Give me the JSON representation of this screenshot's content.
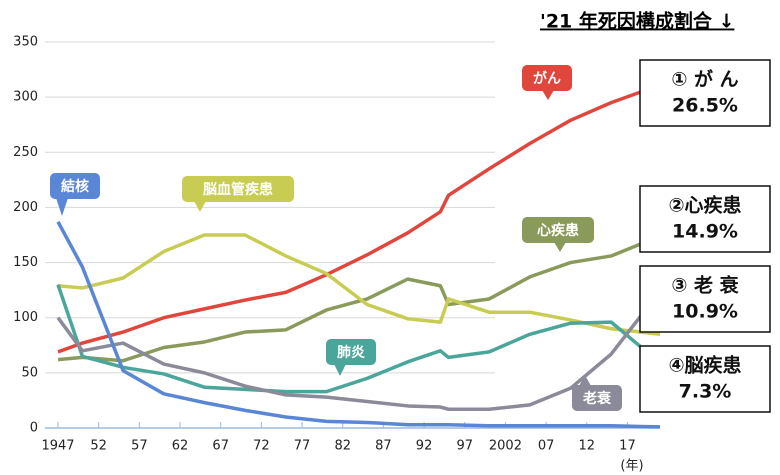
{
  "chart_data": {
    "type": "line",
    "annotation_title": "'21 年死因構成割合 ↓",
    "x_label": "(年)",
    "x": [
      1947,
      1950,
      1955,
      1960,
      1965,
      1970,
      1975,
      1980,
      1985,
      1990,
      1994,
      1995,
      2000,
      2005,
      2010,
      2015,
      2021
    ],
    "xlim": [
      1947,
      2021
    ],
    "xticks": [
      1947,
      {
        "value": 1952,
        "label": "52"
      },
      {
        "value": 1957,
        "label": "57"
      },
      {
        "value": 1962,
        "label": "62"
      },
      {
        "value": 1967,
        "label": "67"
      },
      {
        "value": 1972,
        "label": "72"
      },
      {
        "value": 1977,
        "label": "77"
      },
      {
        "value": 1982,
        "label": "82"
      },
      {
        "value": 1987,
        "label": "87"
      },
      {
        "value": 1992,
        "label": "92"
      },
      {
        "value": 1997,
        "label": "97"
      },
      2002,
      {
        "value": 2007,
        "label": "07"
      },
      {
        "value": 2012,
        "label": "12"
      },
      {
        "value": 2017,
        "label": "17"
      }
    ],
    "ylim": [
      0,
      350
    ],
    "yticks": [
      0,
      50,
      100,
      150,
      200,
      250,
      300,
      350
    ],
    "grid": true,
    "series": [
      {
        "name": "がん",
        "color": "#e0463c",
        "values": [
          69,
          77,
          87,
          100,
          108,
          116,
          123,
          139,
          157,
          177,
          196,
          211,
          235,
          258,
          279,
          295,
          311
        ]
      },
      {
        "name": "心疾患",
        "color": "#8a9a5a",
        "values": [
          62,
          64,
          61,
          73,
          78,
          87,
          89,
          107,
          117,
          135,
          129,
          112,
          117,
          137,
          150,
          156,
          174
        ]
      },
      {
        "name": "脳血管疾患",
        "color": "#c8cc52",
        "values": [
          129,
          127,
          136,
          160,
          175,
          175,
          156,
          140,
          112,
          99,
          96,
          117,
          105,
          105,
          98,
          90,
          85
        ]
      },
      {
        "name": "肺炎",
        "color": "#4aa59a",
        "values": [
          130,
          65,
          55,
          49,
          37,
          35,
          33,
          33,
          45,
          60,
          70,
          64,
          69,
          85,
          95,
          96,
          59
        ]
      },
      {
        "name": "老衰",
        "color": "#8a8a98",
        "values": [
          100,
          70,
          77,
          58,
          50,
          38,
          30,
          28,
          24,
          20,
          19,
          17,
          17,
          21,
          36,
          67,
          124
        ]
      },
      {
        "name": "結核",
        "color": "#5a86d6",
        "values": [
          187,
          146,
          52,
          31,
          23,
          16,
          10,
          6,
          5,
          3,
          3,
          3,
          2,
          2,
          2,
          2,
          1
        ]
      }
    ],
    "annotations": [
      {
        "label": "① が ん",
        "text": "26.5%"
      },
      {
        "label": "②心疾患",
        "text": "14.9%"
      },
      {
        "label": "③ 老 衰",
        "text": "10.9%"
      },
      {
        "label": "④脳疾患",
        "text": "7.3%"
      }
    ]
  }
}
